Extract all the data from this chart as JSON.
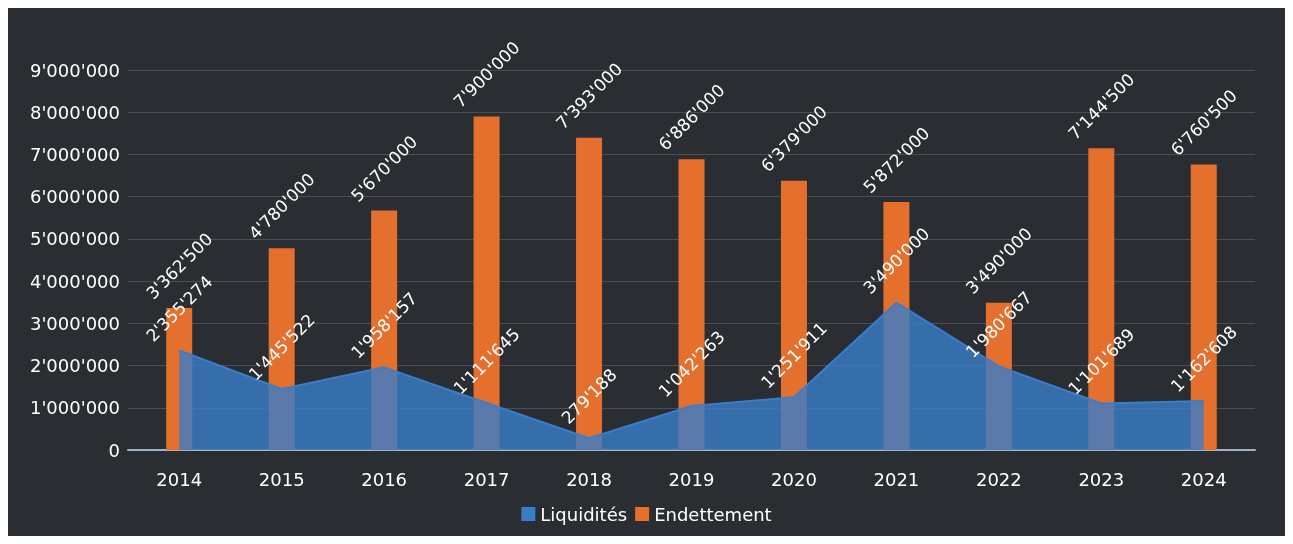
{
  "chart_data": {
    "type": "bar",
    "categories": [
      "2014",
      "2015",
      "2016",
      "2017",
      "2018",
      "2019",
      "2020",
      "2021",
      "2022",
      "2023",
      "2024"
    ],
    "series": [
      {
        "name": "Liquidités",
        "type": "area",
        "color": "#3a7dc9",
        "values": [
          2355274,
          1445522,
          1958157,
          1111645,
          279188,
          1042263,
          1251911,
          3490000,
          1980667,
          1101689,
          1162608
        ],
        "value_labels": [
          "2'355'274",
          "1'445'522",
          "1'958'157",
          "1'111'645",
          "279'188",
          "1'042'263",
          "1'251'911",
          "3'490'000",
          "1'980'667",
          "1'101'689",
          "1'162'608"
        ]
      },
      {
        "name": "Endettement",
        "color": "#e56f2c",
        "values": [
          3362500,
          4780000,
          5670000,
          7900000,
          7393000,
          6886000,
          6379000,
          5872000,
          3490000,
          7144500,
          6760500
        ],
        "value_labels": [
          "3'362'500",
          "4'780'000",
          "5'670'000",
          "7'900'000",
          "7'393'000",
          "6'886'000",
          "6'379'000",
          "5'872'000",
          "3'490'000",
          "7'144'500",
          "6'760'500"
        ]
      }
    ],
    "ylim": [
      0,
      9000000
    ],
    "yticks": [
      {
        "value": 0,
        "label": "0"
      },
      {
        "value": 1000000,
        "label": "1'000'000"
      },
      {
        "value": 2000000,
        "label": "2'000'000"
      },
      {
        "value": 3000000,
        "label": "3'000'000"
      },
      {
        "value": 4000000,
        "label": "4'000'000"
      },
      {
        "value": 5000000,
        "label": "5'000'000"
      },
      {
        "value": 6000000,
        "label": "6'000'000"
      },
      {
        "value": 7000000,
        "label": "7'000'000"
      },
      {
        "value": 8000000,
        "label": "8'000'000"
      },
      {
        "value": 9000000,
        "label": "9'000'000"
      }
    ],
    "grid": "y",
    "legend": "bottom"
  }
}
